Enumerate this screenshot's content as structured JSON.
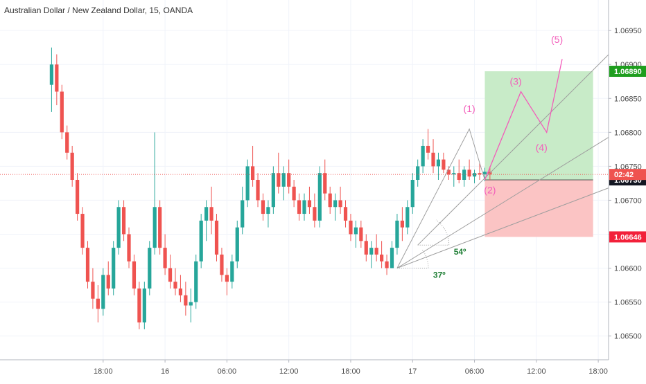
{
  "chart_data": {
    "type": "candlestick",
    "title": "Australian Dollar / New Zealand Dollar, 15, OANDA",
    "ylim": [
      1.06465,
      1.06995
    ],
    "y_ticks": [
      "1.06950",
      "1.06900",
      "1.06850",
      "1.06800",
      "1.06750",
      "1.06700",
      "1.06650",
      "1.06600",
      "1.06550",
      "1.06500"
    ],
    "x_ticks": [
      "18:00",
      "16",
      "06:00",
      "12:00",
      "18:00",
      "17",
      "06:00",
      "12:00",
      "18:00"
    ],
    "bar_count": 86,
    "x_range": [
      -10,
      108
    ],
    "x_tick_bars": [
      10,
      22,
      34,
      46,
      58,
      70,
      82,
      94,
      106
    ],
    "current_price": 1.06738,
    "countdown": "02:42",
    "up_color": "#26a69a",
    "down_color": "#ef5350",
    "candles": [
      [
        1.0687,
        1.06925,
        1.0683,
        1.069
      ],
      [
        1.069,
        1.06915,
        1.0684,
        1.0686
      ],
      [
        1.0686,
        1.0687,
        1.0679,
        1.068
      ],
      [
        1.068,
        1.0681,
        1.0676,
        1.0677
      ],
      [
        1.0677,
        1.0678,
        1.0672,
        1.0673
      ],
      [
        1.0673,
        1.0674,
        1.0667,
        1.0668
      ],
      [
        1.0668,
        1.0669,
        1.0662,
        1.0663
      ],
      [
        1.0663,
        1.0664,
        1.0657,
        1.0658
      ],
      [
        1.0658,
        1.066,
        1.0654,
        1.06555
      ],
      [
        1.06555,
        1.06575,
        1.0652,
        1.0654
      ],
      [
        1.0654,
        1.066,
        1.0653,
        1.0659
      ],
      [
        1.0659,
        1.0661,
        1.0656,
        1.0657
      ],
      [
        1.0657,
        1.0664,
        1.0656,
        1.0663
      ],
      [
        1.0663,
        1.067,
        1.0662,
        1.0669
      ],
      [
        1.0669,
        1.067,
        1.0664,
        1.0665
      ],
      [
        1.0665,
        1.0666,
        1.066,
        1.0661
      ],
      [
        1.0661,
        1.0662,
        1.0656,
        1.0657
      ],
      [
        1.0657,
        1.0658,
        1.0651,
        1.0652
      ],
      [
        1.0652,
        1.0658,
        1.0651,
        1.0657
      ],
      [
        1.0657,
        1.0664,
        1.0656,
        1.0663
      ],
      [
        1.0663,
        1.068,
        1.0662,
        1.0669
      ],
      [
        1.0669,
        1.067,
        1.0662,
        1.0663
      ],
      [
        1.0663,
        1.0665,
        1.0659,
        1.066
      ],
      [
        1.066,
        1.0662,
        1.0657,
        1.0658
      ],
      [
        1.0658,
        1.066,
        1.0656,
        1.0657
      ],
      [
        1.0657,
        1.0659,
        1.0655,
        1.0656
      ],
      [
        1.0656,
        1.0658,
        1.0653,
        1.06545
      ],
      [
        1.06545,
        1.0657,
        1.0652,
        1.0655
      ],
      [
        1.0655,
        1.0662,
        1.0654,
        1.0661
      ],
      [
        1.0661,
        1.0668,
        1.066,
        1.0667
      ],
      [
        1.0667,
        1.067,
        1.0664,
        1.0669
      ],
      [
        1.0669,
        1.0672,
        1.0665,
        1.0667
      ],
      [
        1.0667,
        1.0668,
        1.0661,
        1.0662
      ],
      [
        1.0662,
        1.0663,
        1.0658,
        1.0659
      ],
      [
        1.0659,
        1.066,
        1.0656,
        1.0658
      ],
      [
        1.0658,
        1.0662,
        1.0657,
        1.0661
      ],
      [
        1.0661,
        1.0667,
        1.066,
        1.0666
      ],
      [
        1.0666,
        1.0672,
        1.0665,
        1.067
      ],
      [
        1.067,
        1.0676,
        1.0669,
        1.0675
      ],
      [
        1.0675,
        1.0678,
        1.0672,
        1.0673
      ],
      [
        1.0673,
        1.0674,
        1.0669,
        1.067
      ],
      [
        1.067,
        1.0671,
        1.0667,
        1.0668
      ],
      [
        1.0668,
        1.067,
        1.0666,
        1.0669
      ],
      [
        1.0669,
        1.0675,
        1.0668,
        1.0674
      ],
      [
        1.0674,
        1.0677,
        1.0671,
        1.0672
      ],
      [
        1.0672,
        1.0675,
        1.067,
        1.0674
      ],
      [
        1.0674,
        1.0676,
        1.0671,
        1.0672
      ],
      [
        1.0672,
        1.0673,
        1.0669,
        1.067
      ],
      [
        1.067,
        1.0671,
        1.0667,
        1.0668
      ],
      [
        1.0668,
        1.0671,
        1.0667,
        1.067
      ],
      [
        1.067,
        1.0672,
        1.0668,
        1.0669
      ],
      [
        1.0669,
        1.0671,
        1.0666,
        1.0667
      ],
      [
        1.0667,
        1.0675,
        1.0666,
        1.0674
      ],
      [
        1.0674,
        1.0676,
        1.067,
        1.0671
      ],
      [
        1.0671,
        1.0672,
        1.0668,
        1.0669
      ],
      [
        1.0669,
        1.0671,
        1.0667,
        1.067
      ],
      [
        1.067,
        1.0672,
        1.0668,
        1.0669
      ],
      [
        1.0669,
        1.067,
        1.0666,
        1.0667
      ],
      [
        1.0667,
        1.0668,
        1.0664,
        1.0665
      ],
      [
        1.0665,
        1.0667,
        1.0663,
        1.0666
      ],
      [
        1.0666,
        1.0667,
        1.0663,
        1.0664
      ],
      [
        1.0664,
        1.0665,
        1.0661,
        1.0662
      ],
      [
        1.0662,
        1.0664,
        1.066,
        1.0663
      ],
      [
        1.0663,
        1.0665,
        1.0661,
        1.0662
      ],
      [
        1.0662,
        1.0664,
        1.066,
        1.0661
      ],
      [
        1.0661,
        1.0662,
        1.0659,
        1.066
      ],
      [
        1.066,
        1.0664,
        1.066,
        1.0663
      ],
      [
        1.0663,
        1.0668,
        1.0662,
        1.0667
      ],
      [
        1.0667,
        1.0669,
        1.0664,
        1.0666
      ],
      [
        1.0666,
        1.067,
        1.0665,
        1.0669
      ],
      [
        1.0669,
        1.0674,
        1.0668,
        1.0673
      ],
      [
        1.0673,
        1.0676,
        1.0672,
        1.0675
      ],
      [
        1.0675,
        1.0679,
        1.0674,
        1.0678
      ],
      [
        1.0678,
        1.06805,
        1.0676,
        1.0677
      ],
      [
        1.0677,
        1.0679,
        1.0674,
        1.0675
      ],
      [
        1.0675,
        1.0677,
        1.0673,
        1.0676
      ],
      [
        1.0676,
        1.0677,
        1.0674,
        1.06745
      ],
      [
        1.06745,
        1.0675,
        1.0673,
        1.06738
      ],
      [
        1.06738,
        1.0675,
        1.0672,
        1.0674
      ],
      [
        1.0674,
        1.0676,
        1.06725,
        1.0673
      ],
      [
        1.0673,
        1.0675,
        1.0672,
        1.06745
      ],
      [
        1.06745,
        1.0676,
        1.0673,
        1.06735
      ],
      [
        1.06735,
        1.06745,
        1.06725,
        1.0674
      ],
      [
        1.0674,
        1.06755,
        1.0673,
        1.06738
      ],
      [
        1.06738,
        1.06748,
        1.06728,
        1.06742
      ],
      [
        1.06742,
        1.0675,
        1.0673,
        1.06738
      ]
    ],
    "position": {
      "start_bar": 84,
      "end_bar": 105,
      "entry": 1.0673,
      "target": 1.0689,
      "stop": 1.06646,
      "entry_label": "1.06730",
      "target_label": "1.06890",
      "stop_label": "1.06646",
      "target_fill": "#c8ebc8",
      "stop_fill": "#fbc4c4",
      "target_color": "#1e9e1e",
      "stop_color": "#f2203a"
    },
    "wave_labels": [
      {
        "label": "(1)",
        "bar": 81,
        "price": 1.0683
      },
      {
        "label": "(2)",
        "bar": 85,
        "price": 1.0671
      },
      {
        "label": "(3)",
        "bar": 90,
        "price": 1.0687
      },
      {
        "label": "(4)",
        "bar": 95,
        "price": 1.06773
      },
      {
        "label": "(5)",
        "bar": 98,
        "price": 1.06932
      }
    ],
    "wave_path": [
      {
        "bar": 84,
        "price": 1.0673
      },
      {
        "bar": 91,
        "price": 1.0686
      },
      {
        "bar": 96,
        "price": 1.068
      },
      {
        "bar": 99,
        "price": 1.06908
      }
    ],
    "impulse_path": [
      {
        "bar": 67,
        "price": 1.066
      },
      {
        "bar": 81,
        "price": 1.06805
      },
      {
        "bar": 84,
        "price": 1.0673
      }
    ],
    "wave_color": "#f35cba",
    "fans": [
      {
        "anchor": {
          "bar": 67,
          "price": 1.066
        },
        "angle_label": "37º"
      },
      {
        "anchor": {
          "bar": 71,
          "price": 1.06634
        },
        "angle_label": "54º"
      }
    ]
  }
}
